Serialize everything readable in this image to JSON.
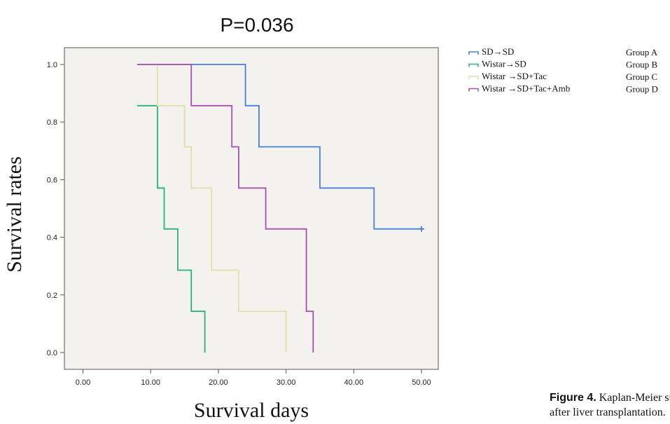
{
  "chart_data": {
    "type": "line",
    "title": "P=0.036",
    "xlabel": "Survival days",
    "ylabel": "Survival rates",
    "xlim": [
      0,
      50
    ],
    "ylim": [
      0,
      1.0
    ],
    "x_ticks": [
      "0.00",
      "10.00",
      "20.00",
      "30.00",
      "40.00",
      "50.00"
    ],
    "y_ticks": [
      "0.0",
      "0.2",
      "0.4",
      "0.6",
      "0.8",
      "1.0"
    ],
    "grid": false,
    "legend_position": "top-right, outside plot",
    "series": [
      {
        "name": "SD→SD",
        "group": "Group A",
        "color": "#4a7fd8",
        "points": [
          [
            8,
            1.0
          ],
          [
            24,
            1.0
          ],
          [
            24,
            0.857
          ],
          [
            26,
            0.857
          ],
          [
            26,
            0.714
          ],
          [
            35,
            0.714
          ],
          [
            35,
            0.571
          ],
          [
            43,
            0.571
          ],
          [
            43,
            0.429
          ],
          [
            50,
            0.429
          ]
        ],
        "censored": [
          [
            50,
            0.429
          ]
        ]
      },
      {
        "name": "Wistar→SD",
        "group": "Group B",
        "color": "#2eb07a",
        "points": [
          [
            8,
            0.857
          ],
          [
            11,
            0.857
          ],
          [
            11,
            0.571
          ],
          [
            12,
            0.571
          ],
          [
            12,
            0.429
          ],
          [
            14,
            0.429
          ],
          [
            14,
            0.286
          ],
          [
            16,
            0.286
          ],
          [
            16,
            0.143
          ],
          [
            18,
            0.143
          ],
          [
            18,
            0.0
          ]
        ],
        "censored": []
      },
      {
        "name": "Wistar →SD+Tac",
        "group": "Group C",
        "color": "#e2dfaa",
        "points": [
          [
            8,
            1.0
          ],
          [
            11,
            1.0
          ],
          [
            11,
            0.857
          ],
          [
            15,
            0.857
          ],
          [
            15,
            0.714
          ],
          [
            16,
            0.714
          ],
          [
            16,
            0.571
          ],
          [
            19,
            0.571
          ],
          [
            19,
            0.286
          ],
          [
            23,
            0.286
          ],
          [
            23,
            0.143
          ],
          [
            30,
            0.143
          ],
          [
            30,
            0.0
          ]
        ],
        "censored": []
      },
      {
        "name": "Wistar →SD+Tac+Amb",
        "group": "Group D",
        "color": "#a84fb0",
        "points": [
          [
            8,
            1.0
          ],
          [
            16,
            1.0
          ],
          [
            16,
            0.857
          ],
          [
            22,
            0.857
          ],
          [
            22,
            0.714
          ],
          [
            23,
            0.714
          ],
          [
            23,
            0.571
          ],
          [
            27,
            0.571
          ],
          [
            27,
            0.429
          ],
          [
            33,
            0.429
          ],
          [
            33,
            0.143
          ],
          [
            34,
            0.143
          ],
          [
            34,
            0.0
          ]
        ],
        "censored": []
      }
    ]
  },
  "caption": {
    "label": "Figure 4.",
    "line1": "Kaplan-Meier su",
    "line2": "after liver transplantation."
  }
}
